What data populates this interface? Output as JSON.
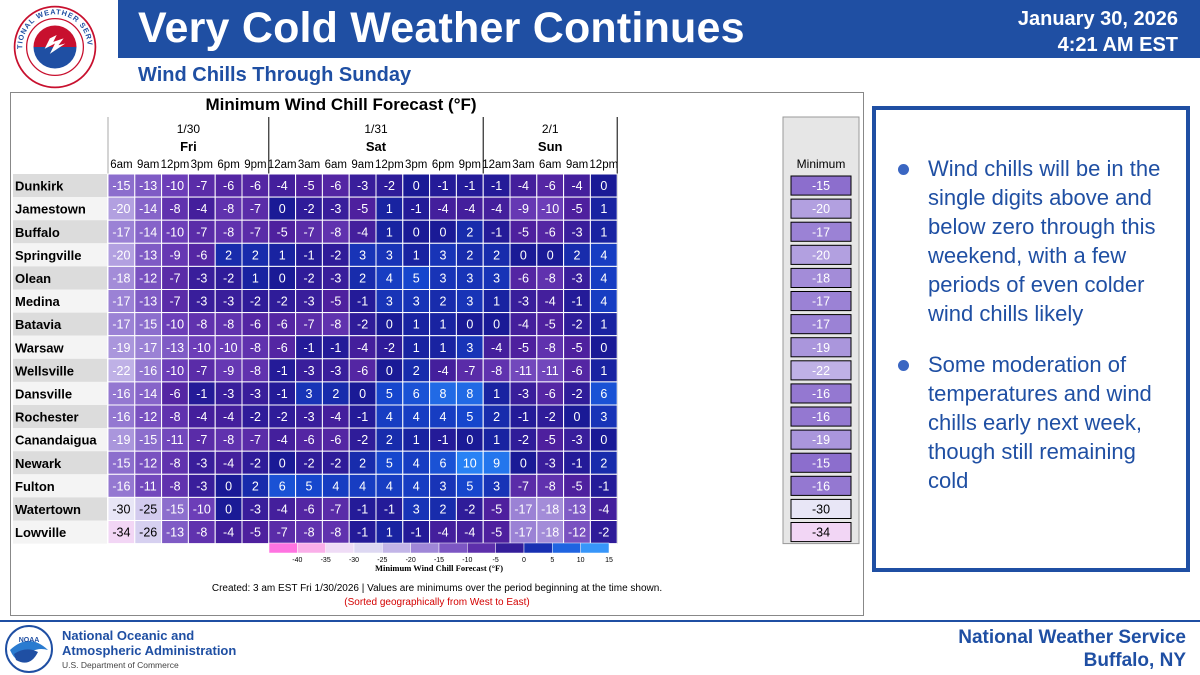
{
  "header": {
    "title": "Very Cold Weather Continues",
    "subtitle": "Wind Chills Through Sunday",
    "date": "January 30, 2026",
    "time": "4:21 AM EST",
    "seal_text": "NATIONAL WEATHER SERVICE",
    "brand_color": "#1f4fa3"
  },
  "chart_data": {
    "type": "table",
    "title": "Minimum Wind Chill Forecast (°F)",
    "days": [
      {
        "date": "1/30",
        "name": "Fri"
      },
      {
        "date": "1/31",
        "name": "Sat"
      },
      {
        "date": "2/1",
        "name": "Sun"
      }
    ],
    "times": [
      "6am",
      "9am",
      "12pm",
      "3pm",
      "6pm",
      "9pm",
      "12am",
      "3am",
      "6am",
      "9am",
      "12pm",
      "3pm",
      "6pm",
      "9pm",
      "12am",
      "3am",
      "6am",
      "9am",
      "12pm"
    ],
    "day_of_time": [
      0,
      0,
      0,
      0,
      0,
      0,
      1,
      1,
      1,
      1,
      1,
      1,
      1,
      1,
      2,
      2,
      2,
      2,
      2
    ],
    "minimum_label": "Minimum",
    "locations": [
      "Dunkirk",
      "Jamestown",
      "Buffalo",
      "Springville",
      "Olean",
      "Medina",
      "Batavia",
      "Warsaw",
      "Wellsville",
      "Dansville",
      "Rochester",
      "Canandaigua",
      "Newark",
      "Fulton",
      "Watertown",
      "Lowville"
    ],
    "values": [
      [
        -15,
        -13,
        -10,
        -7,
        -6,
        -6,
        -4,
        -5,
        -6,
        -3,
        -2,
        0,
        -1,
        -1,
        -1,
        -4,
        -6,
        -4,
        0
      ],
      [
        -20,
        -14,
        -8,
        -4,
        -8,
        -7,
        0,
        -2,
        -3,
        -5,
        1,
        -1,
        -4,
        -4,
        -4,
        -9,
        -10,
        -5,
        1
      ],
      [
        -17,
        -14,
        -10,
        -7,
        -8,
        -7,
        -5,
        -7,
        -8,
        -4,
        1,
        0,
        0,
        2,
        -1,
        -5,
        -6,
        -3,
        1
      ],
      [
        -20,
        -13,
        -9,
        -6,
        2,
        2,
        1,
        -1,
        -2,
        3,
        3,
        1,
        3,
        2,
        2,
        0,
        0,
        2,
        4
      ],
      [
        -18,
        -12,
        -7,
        -3,
        -2,
        1,
        0,
        -2,
        -3,
        2,
        4,
        5,
        3,
        3,
        3,
        -6,
        -8,
        -3,
        4
      ],
      [
        -17,
        -13,
        -7,
        -3,
        -3,
        -2,
        -2,
        -3,
        -5,
        -1,
        3,
        3,
        2,
        3,
        1,
        -3,
        -4,
        -1,
        4
      ],
      [
        -17,
        -15,
        -10,
        -8,
        -8,
        -6,
        -6,
        -7,
        -8,
        -2,
        0,
        1,
        1,
        0,
        0,
        -4,
        -5,
        -2,
        1
      ],
      [
        -19,
        -17,
        -13,
        -10,
        -10,
        -8,
        -6,
        -1,
        -1,
        -4,
        -2,
        1,
        1,
        3,
        -4,
        -5,
        -8,
        -5,
        0
      ],
      [
        -22,
        -16,
        -10,
        -7,
        -9,
        -8,
        -1,
        -3,
        -3,
        -6,
        0,
        2,
        -4,
        -7,
        -8,
        -11,
        -11,
        -6,
        1
      ],
      [
        -16,
        -14,
        -6,
        -1,
        -3,
        -3,
        -1,
        3,
        2,
        0,
        5,
        6,
        8,
        8,
        1,
        -3,
        -6,
        -2,
        6
      ],
      [
        -16,
        -12,
        -8,
        -4,
        -4,
        -2,
        -2,
        -3,
        -4,
        -1,
        4,
        4,
        4,
        5,
        2,
        -1,
        -2,
        0,
        3
      ],
      [
        -19,
        -15,
        -11,
        -7,
        -8,
        -7,
        -4,
        -6,
        -6,
        -2,
        2,
        1,
        -1,
        0,
        1,
        -2,
        -5,
        -3,
        0
      ],
      [
        -15,
        -12,
        -8,
        -3,
        -4,
        -2,
        0,
        -2,
        -2,
        2,
        5,
        4,
        6,
        10,
        9,
        0,
        -3,
        -1,
        2
      ],
      [
        -16,
        -11,
        -8,
        -3,
        0,
        2,
        6,
        5,
        4,
        4,
        4,
        4,
        3,
        5,
        3,
        -7,
        -8,
        -5,
        -1
      ],
      [
        -30,
        -25,
        -15,
        -10,
        0,
        -3,
        -4,
        -6,
        -7,
        -1,
        -1,
        3,
        2,
        -2,
        -5,
        -17,
        -18,
        -13,
        -4
      ],
      [
        -34,
        -26,
        -13,
        -8,
        -4,
        -5,
        -7,
        -8,
        -8,
        -1,
        1,
        -1,
        -4,
        -4,
        -5,
        -17,
        -18,
        -12,
        -2
      ]
    ],
    "minimum": [
      -15,
      -20,
      -17,
      -20,
      -18,
      -17,
      -17,
      -19,
      -22,
      -16,
      -16,
      -19,
      -15,
      -16,
      -30,
      -34
    ],
    "legend": {
      "title": "Minimum Wind Chill Forecast (°F)",
      "ticks": [
        -40,
        -35,
        -30,
        -25,
        -20,
        -15,
        -10,
        -5,
        0,
        5,
        10,
        15
      ],
      "range": [
        -45,
        15
      ]
    },
    "footnote": "Created: 3 am EST Fri 1/30/2026  |  Values are minimums over the period beginning at the time shown.",
    "note": "(Sorted geographically from West to East)"
  },
  "bullets": [
    "Wind chills will be in the single digits above and below zero through this weekend, with a few periods of even colder wind chills likely",
    "Some moderation of temperatures and wind chills early next week, though still remaining cold"
  ],
  "footer": {
    "org_line1": "National Oceanic and",
    "org_line2": "Atmospheric Administration",
    "org_sub": "U.S. Department of Commerce",
    "noaa_logo_text": "NOAA",
    "office_line1": "National Weather Service",
    "office_line2": "Buffalo, NY"
  }
}
